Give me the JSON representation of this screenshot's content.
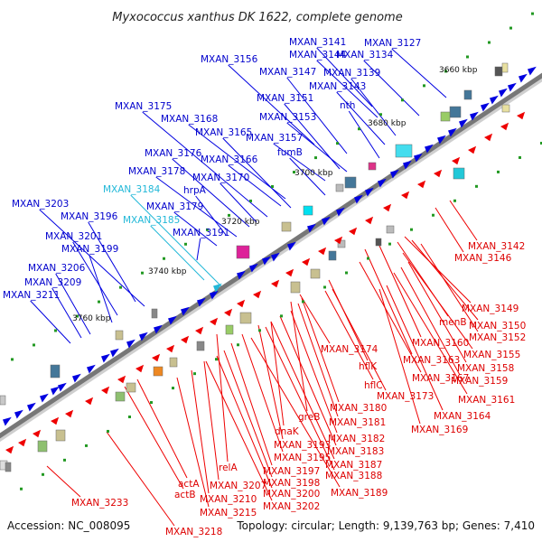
{
  "title": "Myxococcus xanthus DK 1622, complete genome",
  "accession": "Accession: NC_008095",
  "topology": "Topology: circular; Length: 9,139,763 bp; Genes: 7,410",
  "colors": {
    "backbone": "#777777",
    "forward_gene": "#0000e0",
    "reverse_gene": "#ee0000",
    "highlight_gene": "#22b8d8",
    "label_forward": "#0000cc",
    "label_reverse": "#dd0000",
    "label_highlight": "#22b8d8",
    "tick": "#229922"
  },
  "ticks": [
    "3660 kbp",
    "3680 kbp",
    "3700 kbp",
    "3720 kbp",
    "3740 kbp",
    "3760 kbp"
  ],
  "forward_labels": [
    {
      "text": "MXAN_3141",
      "color": "forward"
    },
    {
      "text": "MXAN_3127",
      "color": "forward"
    },
    {
      "text": "MXAN_3144",
      "color": "forward"
    },
    {
      "text": "MXAN_3134",
      "color": "forward"
    },
    {
      "text": "MXAN_3156",
      "color": "forward"
    },
    {
      "text": "MXAN_3147",
      "color": "forward"
    },
    {
      "text": "MXAN_3139",
      "color": "forward"
    },
    {
      "text": "MXAN_3143",
      "color": "forward"
    },
    {
      "text": "MXAN_3151",
      "color": "forward"
    },
    {
      "text": "nth",
      "color": "forward"
    },
    {
      "text": "MXAN_3175",
      "color": "forward"
    },
    {
      "text": "MXAN_3168",
      "color": "forward"
    },
    {
      "text": "MXAN_3153",
      "color": "forward"
    },
    {
      "text": "MXAN_3165",
      "color": "forward"
    },
    {
      "text": "MXAN_3157",
      "color": "forward"
    },
    {
      "text": "MXAN_3176",
      "color": "forward"
    },
    {
      "text": "fumB",
      "color": "forward"
    },
    {
      "text": "MXAN_3166",
      "color": "forward"
    },
    {
      "text": "MXAN_3178",
      "color": "forward"
    },
    {
      "text": "MXAN_3170",
      "color": "forward"
    },
    {
      "text": "MXAN_3184",
      "color": "highlight"
    },
    {
      "text": "hrpA",
      "color": "forward"
    },
    {
      "text": "MXAN_3203",
      "color": "forward"
    },
    {
      "text": "MXAN_3179",
      "color": "forward"
    },
    {
      "text": "MXAN_3196",
      "color": "forward"
    },
    {
      "text": "MXAN_3185",
      "color": "highlight"
    },
    {
      "text": "MXAN_3191",
      "color": "forward"
    },
    {
      "text": "MXAN_3201",
      "color": "forward"
    },
    {
      "text": "MXAN_3199",
      "color": "forward"
    },
    {
      "text": "MXAN_3206",
      "color": "forward"
    },
    {
      "text": "MXAN_3209",
      "color": "forward"
    },
    {
      "text": "MXAN_3211",
      "color": "forward"
    }
  ],
  "reverse_labels": [
    {
      "text": "MXAN_3142"
    },
    {
      "text": "MXAN_3146"
    },
    {
      "text": "MXAN_3149"
    },
    {
      "text": "menB"
    },
    {
      "text": "MXAN_3150"
    },
    {
      "text": "MXAN_3152"
    },
    {
      "text": "MXAN_3174"
    },
    {
      "text": "MXAN_3160"
    },
    {
      "text": "MXAN_3155"
    },
    {
      "text": "MXAN_3163"
    },
    {
      "text": "hflK"
    },
    {
      "text": "MXAN_3158"
    },
    {
      "text": "MXAN_3167"
    },
    {
      "text": "MXAN_3159"
    },
    {
      "text": "hflC"
    },
    {
      "text": "MXAN_3173"
    },
    {
      "text": "MXAN_3161"
    },
    {
      "text": "MXAN_3180"
    },
    {
      "text": "greB"
    },
    {
      "text": "MXAN_3181"
    },
    {
      "text": "MXAN_3164"
    },
    {
      "text": "MXAN_3169"
    },
    {
      "text": "dnaK"
    },
    {
      "text": "MXAN_3182"
    },
    {
      "text": "MXAN_3193"
    },
    {
      "text": "MXAN_3183"
    },
    {
      "text": "MXAN_3195"
    },
    {
      "text": "MXAN_3187"
    },
    {
      "text": "relA"
    },
    {
      "text": "MXAN_3197"
    },
    {
      "text": "MXAN_3188"
    },
    {
      "text": "MXAN_3198"
    },
    {
      "text": "actA"
    },
    {
      "text": "MXAN_3207"
    },
    {
      "text": "MXAN_3200"
    },
    {
      "text": "MXAN_3189"
    },
    {
      "text": "actB"
    },
    {
      "text": "MXAN_3210"
    },
    {
      "text": "MXAN_3202"
    },
    {
      "text": "MXAN_3233"
    },
    {
      "text": "MXAN_3215"
    },
    {
      "text": "MXAN_3218"
    }
  ]
}
